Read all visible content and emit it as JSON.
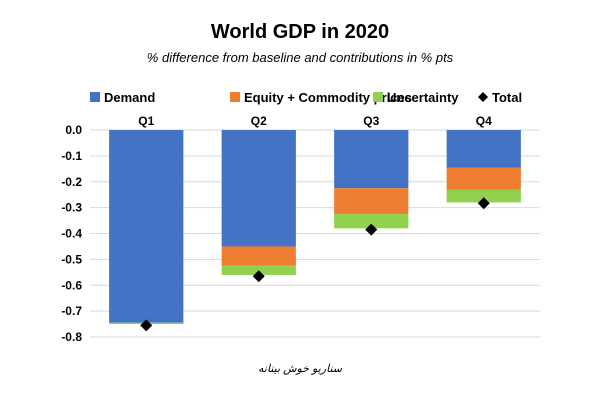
{
  "chart_data": {
    "type": "bar",
    "stacked": true,
    "title": "World GDP in 2020",
    "subtitle": "% difference from baseline and contributions in % pts",
    "xlabel": "",
    "ylabel": "",
    "categories": [
      "Q1",
      "Q2",
      "Q3",
      "Q4"
    ],
    "category_label_position": "top",
    "ylim": [
      -0.8,
      0.0
    ],
    "yticks": [
      0.0,
      -0.1,
      -0.2,
      -0.3,
      -0.4,
      -0.5,
      -0.6,
      -0.7,
      -0.8
    ],
    "ytick_labels": [
      "0.0",
      "-0.1",
      "-0.2",
      "-0.3",
      "-0.4",
      "-0.5",
      "-0.6",
      "-0.7",
      "-0.8"
    ],
    "grid": true,
    "legend_position": "top",
    "series": [
      {
        "name": "Demand",
        "color": "#4472C4",
        "values": [
          -0.745,
          -0.45,
          -0.225,
          -0.145
        ]
      },
      {
        "name": "Equity + Commodity prices",
        "color": "#ED7D31",
        "values": [
          0.0,
          -0.075,
          -0.1,
          -0.085
        ]
      },
      {
        "name": "Uncertainty",
        "color": "#92D050",
        "values": [
          -0.005,
          -0.035,
          -0.055,
          -0.05
        ]
      }
    ],
    "total": {
      "name": "Total",
      "marker": "diamond",
      "color": "#000000",
      "values": [
        -0.755,
        -0.565,
        -0.385,
        -0.283
      ]
    }
  },
  "caption": "سناریو خوش بینانه"
}
